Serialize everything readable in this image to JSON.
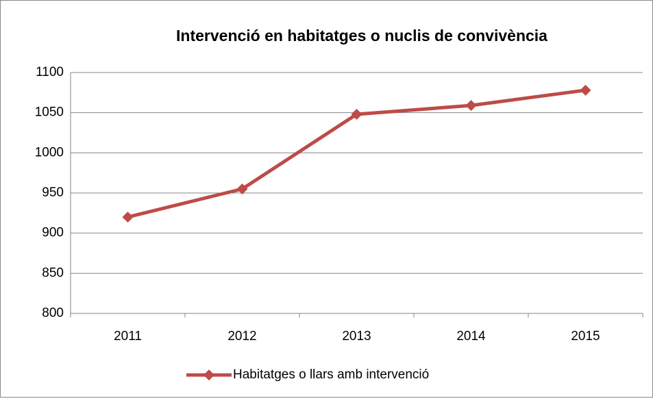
{
  "chart_data": {
    "type": "line",
    "title": "Intervenció en habitatges o nuclis de convivència",
    "categories": [
      "2011",
      "2012",
      "2013",
      "2014",
      "2015"
    ],
    "series": [
      {
        "name": "Habitatges o llars amb intervenció",
        "color": "#be4b48",
        "values": [
          920,
          955,
          1048,
          1059,
          1078
        ]
      }
    ],
    "ylim": [
      800,
      1100
    ],
    "yticks": [
      800,
      850,
      900,
      950,
      1000,
      1050,
      1100
    ],
    "grid": true,
    "legend": "bottom"
  }
}
